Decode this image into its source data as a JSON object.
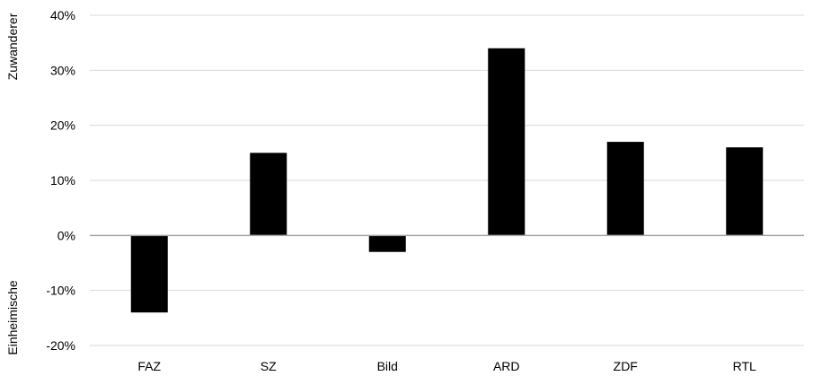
{
  "chart_data": {
    "type": "bar",
    "categories": [
      "FAZ",
      "SZ",
      "Bild",
      "ARD",
      "ZDF",
      "RTL"
    ],
    "values": [
      -14,
      15,
      -3,
      34,
      17,
      16
    ],
    "ylim": [
      -20,
      40
    ],
    "yticks": [
      -20,
      -10,
      0,
      10,
      20,
      30,
      40
    ],
    "ytick_labels": [
      "-20%",
      "-10%",
      "0%",
      "10%",
      "20%",
      "30%",
      "40%"
    ],
    "ylabel_top": "Zuwanderer",
    "ylabel_bottom": "Einheimische",
    "grid": true,
    "bar_color": "#000000"
  }
}
